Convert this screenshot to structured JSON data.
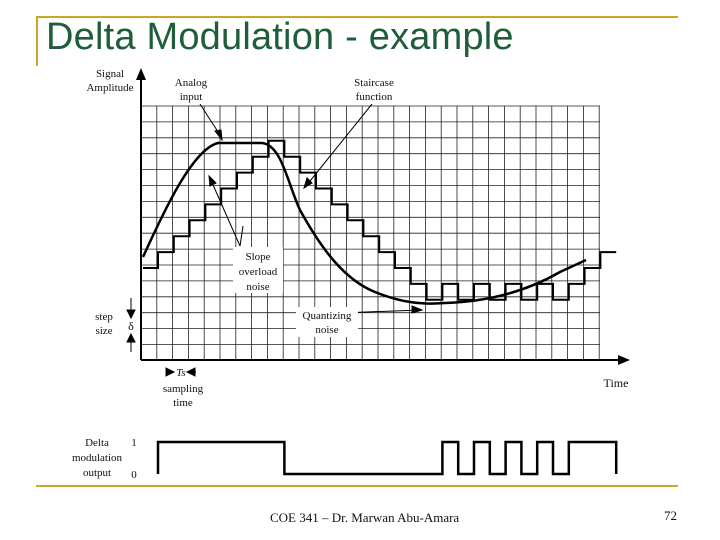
{
  "slide": {
    "title": "Delta Modulation - example",
    "footer": "COE 341 – Dr. Marwan Abu-Amara",
    "page_number": "72"
  },
  "figure": {
    "y_axis_label_line1": "Signal",
    "y_axis_label_line2": "Amplitude",
    "x_axis_label": "Time",
    "analog_label_line1": "Analog",
    "analog_label_line2": "input",
    "staircase_label_line1": "Staircase",
    "staircase_label_line2": "function",
    "slope_label_line1": "Slope",
    "slope_label_line2": "overload",
    "slope_label_line3": "noise",
    "quant_label_line1": "Quantizing",
    "quant_label_line2": "noise",
    "step_label_line1": "step",
    "step_label_line2": "size",
    "delta_symbol": "δ",
    "ts_symbol": "Ts",
    "sampling_label_line1": "sampling",
    "sampling_label_line2": "time",
    "output_label_line1": "Delta",
    "output_label_line2": "modulation",
    "output_label_line3": "output",
    "output_high": "1",
    "output_low": "0",
    "output_bits": [
      1,
      1,
      1,
      1,
      1,
      1,
      1,
      1,
      0,
      0,
      0,
      0,
      0,
      0,
      0,
      0,
      0,
      0,
      1,
      0,
      1,
      0,
      1,
      0,
      1,
      0,
      1,
      1,
      1
    ]
  }
}
